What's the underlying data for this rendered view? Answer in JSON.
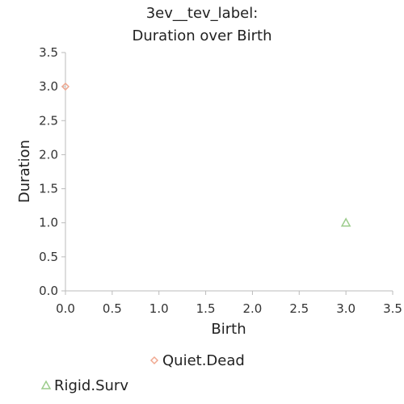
{
  "chart_data": {
    "type": "scatter",
    "title": [
      "3ev__tev_label:",
      "Duration over Birth"
    ],
    "xlabel": "Birth",
    "ylabel": "Duration",
    "xlim": [
      0.0,
      3.5
    ],
    "ylim": [
      0.0,
      3.5
    ],
    "xticks": [
      "0.0",
      "0.5",
      "1.0",
      "1.5",
      "2.0",
      "2.5",
      "3.0",
      "3.5"
    ],
    "yticks": [
      "0.0",
      "0.5",
      "1.0",
      "1.5",
      "2.0",
      "2.5",
      "3.0",
      "3.5"
    ],
    "grid": false,
    "legend_position": "bottom",
    "series": [
      {
        "name": "Quiet.Dead",
        "marker": "diamond",
        "color": "#f0a890",
        "points": [
          {
            "x": 0.0,
            "y": 3.0
          }
        ]
      },
      {
        "name": "Rigid.Surv",
        "marker": "triangle",
        "color": "#9ccc8c",
        "points": [
          {
            "x": 3.0,
            "y": 1.0
          }
        ]
      }
    ]
  }
}
